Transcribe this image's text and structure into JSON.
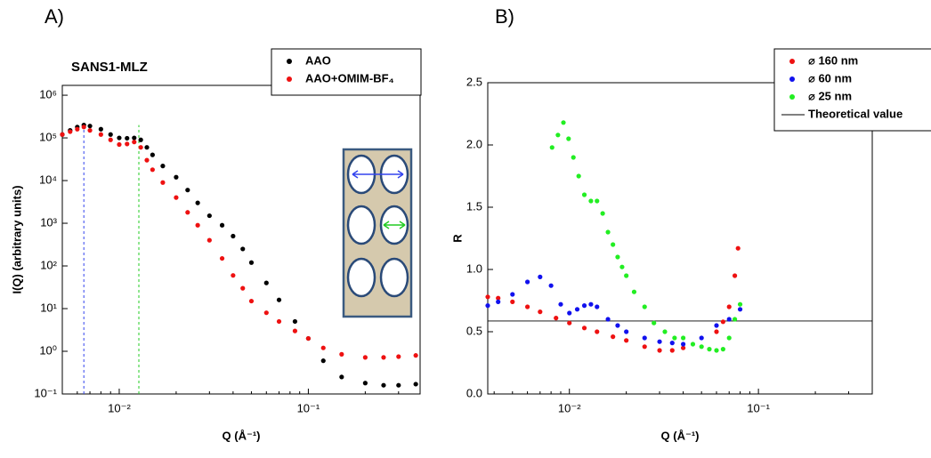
{
  "panels": [
    {
      "chart_data": {
        "type": "scatter",
        "panel_label": "A)",
        "annotation": "SANS1-MLZ",
        "x_label": "Q (Å⁻¹)",
        "y_label": "I(Q) (arbitrary units)",
        "xscale": "log",
        "yscale": "log",
        "xlim": [
          0.005,
          0.39
        ],
        "ylim": [
          0.1,
          1700000
        ],
        "xticks": [
          {
            "value": 0.01,
            "label": "10⁻²"
          },
          {
            "value": 0.1,
            "label": "10⁻¹"
          }
        ],
        "yticks": [
          {
            "value": 0.1,
            "label": "10⁻¹"
          },
          {
            "value": 1,
            "label": "10⁰"
          },
          {
            "value": 10,
            "label": "10¹"
          },
          {
            "value": 100,
            "label": "10²"
          },
          {
            "value": 1000,
            "label": "10³"
          },
          {
            "value": 10000,
            "label": "10⁴"
          },
          {
            "value": 100000,
            "label": "10⁵"
          },
          {
            "value": 1000000,
            "label": "10⁶"
          }
        ],
        "legend": "upper right",
        "series": [
          {
            "name": "AAO",
            "color": "#000000",
            "x": [
              0.005,
              0.0055,
              0.006,
              0.0065,
              0.007,
              0.008,
              0.009,
              0.01,
              0.011,
              0.012,
              0.013,
              0.014,
              0.015,
              0.017,
              0.02,
              0.023,
              0.026,
              0.03,
              0.035,
              0.04,
              0.045,
              0.05,
              0.06,
              0.07,
              0.085,
              0.1,
              0.12,
              0.15,
              0.2,
              0.25,
              0.3,
              0.37
            ],
            "values": [
              120000,
              150000,
              180000,
              200000,
              190000,
              160000,
              120000,
              100000,
              98000,
              100000,
              90000,
              60000,
              40000,
              22000,
              12000,
              6000,
              3000,
              1500,
              900,
              500,
              250,
              120,
              40,
              16,
              5,
              2,
              0.6,
              0.25,
              0.18,
              0.16,
              0.16,
              0.17
            ]
          },
          {
            "name": "AAO+OMIM-BF₄",
            "color": "#ee1111",
            "x": [
              0.005,
              0.0055,
              0.006,
              0.0065,
              0.007,
              0.008,
              0.009,
              0.01,
              0.011,
              0.012,
              0.013,
              0.014,
              0.015,
              0.017,
              0.02,
              0.023,
              0.026,
              0.03,
              0.035,
              0.04,
              0.045,
              0.05,
              0.06,
              0.07,
              0.085,
              0.1,
              0.12,
              0.15,
              0.2,
              0.25,
              0.3,
              0.37
            ],
            "values": [
              120000,
              140000,
              160000,
              180000,
              150000,
              120000,
              90000,
              70000,
              72000,
              80000,
              60000,
              30000,
              18000,
              9000,
              4000,
              1800,
              900,
              400,
              150,
              60,
              30,
              15,
              8,
              5,
              3,
              2,
              1.2,
              0.85,
              0.72,
              0.72,
              0.75,
              0.8
            ]
          }
        ],
        "vlines": [
          {
            "x": 0.0065,
            "color": "#3344ee"
          },
          {
            "x": 0.0127,
            "color": "#22cc22"
          }
        ]
      }
    },
    {
      "chart_data": {
        "type": "scatter",
        "panel_label": "B)",
        "x_label": "Q (Å⁻¹)",
        "y_label": "R",
        "xscale": "log",
        "yscale": "linear",
        "xlim": [
          0.0037,
          0.4
        ],
        "ylim": [
          0,
          2.5
        ],
        "xticks": [
          {
            "value": 0.01,
            "label": "10⁻²"
          },
          {
            "value": 0.1,
            "label": "10⁻¹"
          }
        ],
        "yticks": [
          {
            "value": 0,
            "label": "0.0"
          },
          0.5,
          {
            "value": 1,
            "label": "1.0"
          },
          1.5,
          {
            "value": 2,
            "label": "2.0"
          },
          2.5
        ],
        "legend": "upper right",
        "series": [
          {
            "name": "⌀ 160 nm",
            "color": "#ee1111",
            "x": [
              0.0037,
              0.0042,
              0.005,
              0.006,
              0.007,
              0.0085,
              0.01,
              0.012,
              0.014,
              0.017,
              0.02,
              0.025,
              0.03,
              0.035,
              0.04,
              0.06,
              0.065,
              0.07,
              0.075,
              0.078
            ],
            "values": [
              0.78,
              0.77,
              0.74,
              0.7,
              0.66,
              0.61,
              0.57,
              0.53,
              0.5,
              0.46,
              0.43,
              0.38,
              0.35,
              0.35,
              0.37,
              0.5,
              0.58,
              0.7,
              0.95,
              1.17
            ]
          },
          {
            "name": "⌀ 60 nm",
            "color": "#1111ee",
            "x": [
              0.0037,
              0.0042,
              0.005,
              0.006,
              0.007,
              0.008,
              0.009,
              0.01,
              0.011,
              0.012,
              0.013,
              0.014,
              0.016,
              0.018,
              0.02,
              0.025,
              0.03,
              0.035,
              0.04,
              0.05,
              0.06,
              0.07,
              0.08
            ],
            "values": [
              0.71,
              0.74,
              0.8,
              0.9,
              0.94,
              0.87,
              0.72,
              0.65,
              0.68,
              0.71,
              0.72,
              0.7,
              0.6,
              0.55,
              0.5,
              0.45,
              0.42,
              0.41,
              0.4,
              0.45,
              0.55,
              0.6,
              0.68
            ]
          },
          {
            "name": "⌀ 25 nm",
            "color": "#22ee22",
            "x": [
              0.0081,
              0.0087,
              0.0093,
              0.0099,
              0.0105,
              0.0112,
              0.012,
              0.013,
              0.014,
              0.015,
              0.016,
              0.017,
              0.018,
              0.019,
              0.02,
              0.022,
              0.025,
              0.028,
              0.032,
              0.036,
              0.04,
              0.045,
              0.05,
              0.055,
              0.06,
              0.065,
              0.07,
              0.075,
              0.08
            ],
            "values": [
              1.98,
              2.08,
              2.18,
              2.05,
              1.9,
              1.75,
              1.6,
              1.55,
              1.55,
              1.45,
              1.3,
              1.2,
              1.1,
              1.02,
              0.95,
              0.82,
              0.7,
              0.57,
              0.5,
              0.45,
              0.45,
              0.4,
              0.38,
              0.36,
              0.35,
              0.36,
              0.45,
              0.6,
              0.72
            ]
          }
        ],
        "hlines": [
          {
            "name": "Theoretical value",
            "y": 0.586,
            "color": "#000000"
          }
        ]
      }
    }
  ]
}
